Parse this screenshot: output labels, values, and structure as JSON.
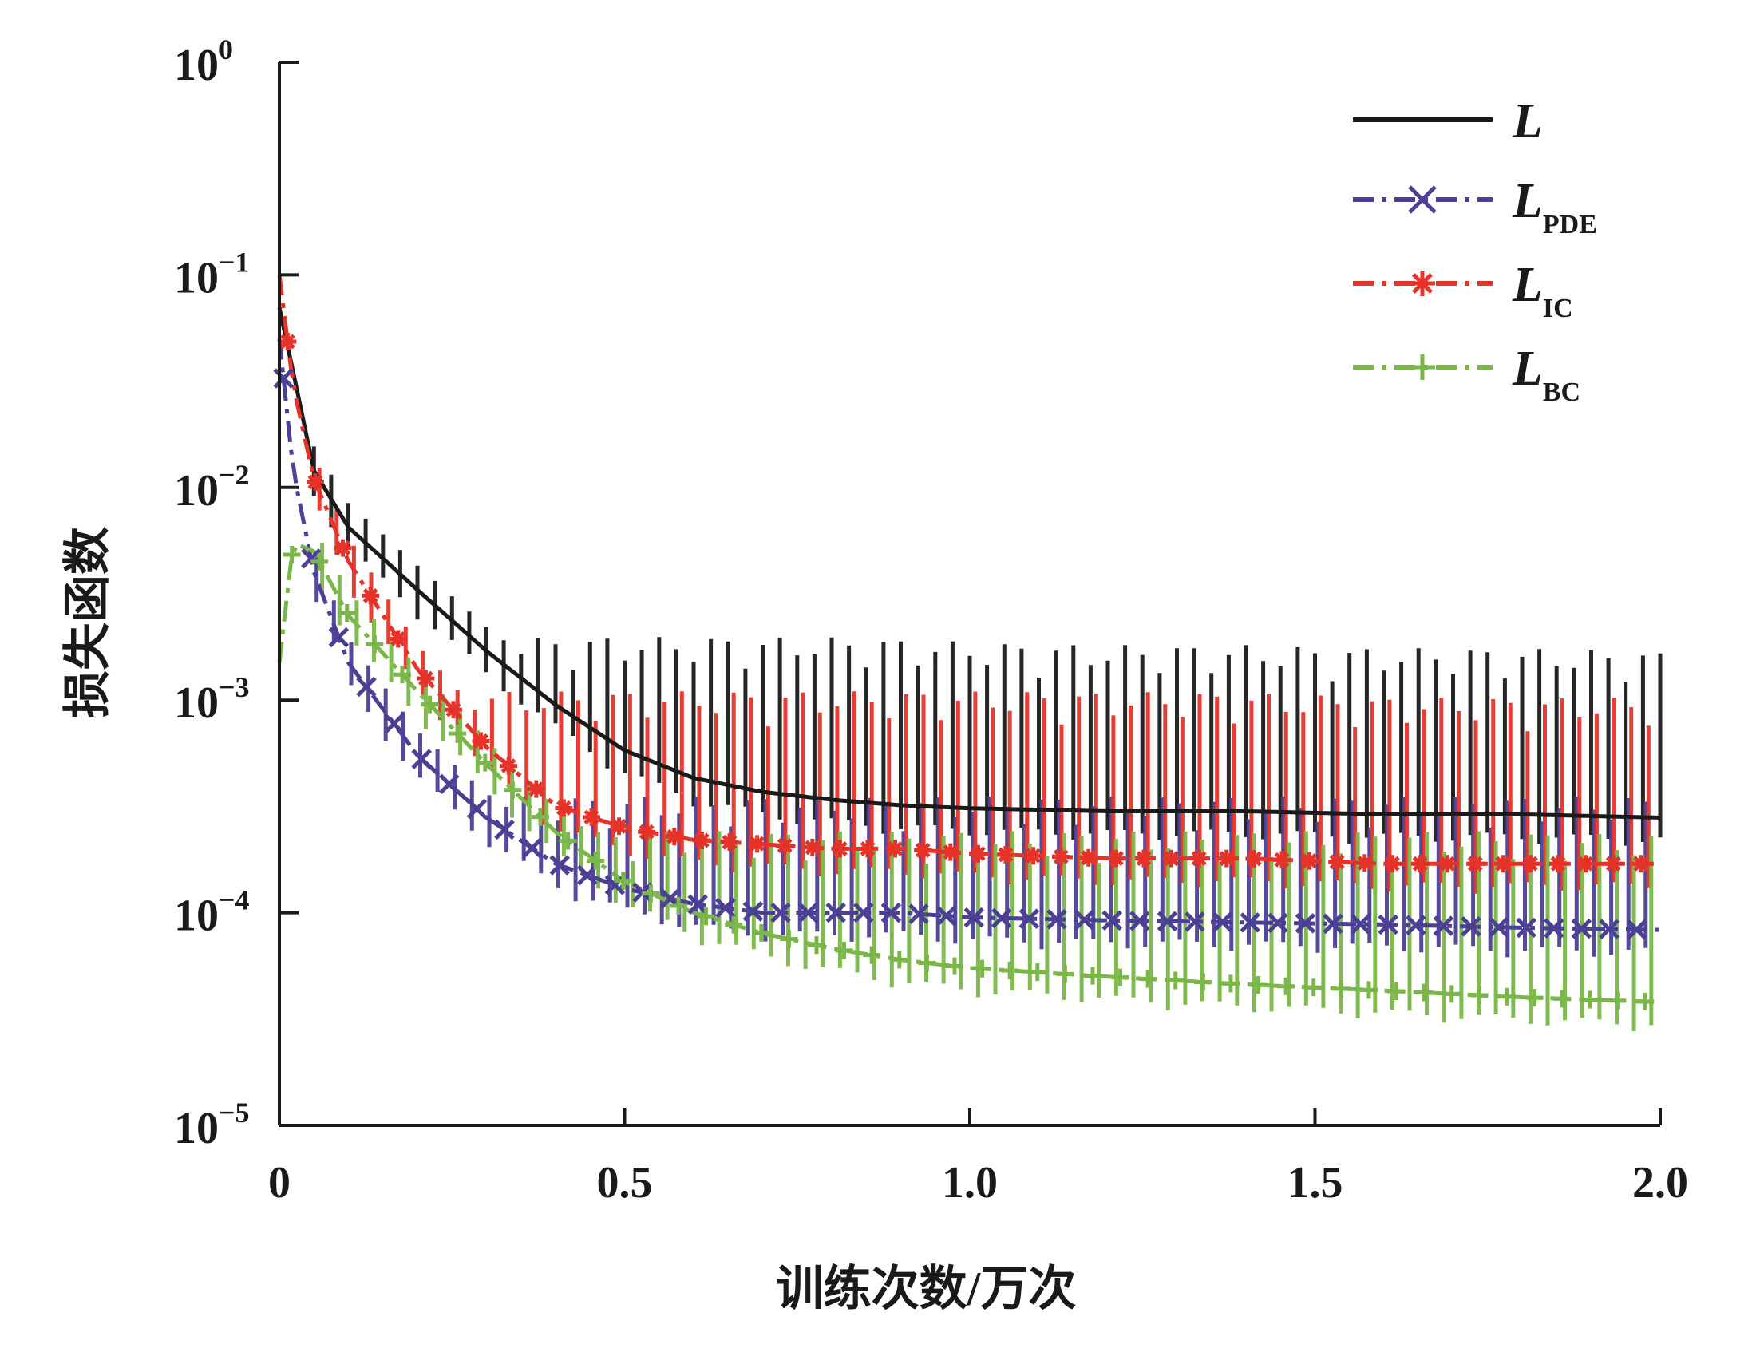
{
  "chart_data": {
    "type": "line",
    "title": "",
    "xlabel": "训练次数/万次",
    "ylabel": "损失函数",
    "xlim": [
      0,
      2.0
    ],
    "ylim": [
      1e-05,
      1
    ],
    "yscale": "log",
    "xticks": [
      "0",
      "0.5",
      "1.0",
      "1.5",
      "2.0"
    ],
    "yticks": [
      {
        "base": "10",
        "exp": "0"
      },
      {
        "base": "10",
        "exp": "−1"
      },
      {
        "base": "10",
        "exp": "−2"
      },
      {
        "base": "10",
        "exp": "−3"
      },
      {
        "base": "10",
        "exp": "−4"
      },
      {
        "base": "10",
        "exp": "−5"
      }
    ],
    "grid": false,
    "legend_position": "top-right",
    "x": [
      0,
      0.02,
      0.05,
      0.1,
      0.2,
      0.3,
      0.4,
      0.5,
      0.6,
      0.7,
      0.8,
      0.9,
      1.0,
      1.2,
      1.4,
      1.6,
      1.8,
      2.0
    ],
    "series": [
      {
        "name": "L",
        "subscript": "",
        "color": "#1a1a1a",
        "dash": "solid",
        "marker": "none",
        "values": [
          0.07,
          0.035,
          0.012,
          0.0065,
          0.0033,
          0.0017,
          0.00095,
          0.00058,
          0.00043,
          0.00037,
          0.00034,
          0.00032,
          0.00031,
          0.0003,
          0.0003,
          0.00029,
          0.00029,
          0.00028
        ],
        "spike_top": 0.0018
      },
      {
        "name": "L",
        "subscript": "PDE",
        "color": "#4b3f96",
        "dash": "dashdot",
        "marker": "x",
        "values": [
          0.05,
          0.012,
          0.004,
          0.0015,
          0.00055,
          0.00028,
          0.00017,
          0.00013,
          0.00011,
          0.0001,
          0.0001,
          0.0001,
          9.5e-05,
          9.2e-05,
          9e-05,
          8.8e-05,
          8.5e-05,
          8.3e-05
        ],
        "spike_top": 0.00032
      },
      {
        "name": "L",
        "subscript": "IC",
        "color": "#e5332a",
        "dash": "dashdot",
        "marker": "asterisk",
        "values": [
          0.1,
          0.03,
          0.011,
          0.0045,
          0.0014,
          0.0006,
          0.00032,
          0.00025,
          0.00022,
          0.00021,
          0.0002,
          0.0002,
          0.00019,
          0.00018,
          0.00018,
          0.00017,
          0.00017,
          0.00017
        ],
        "spike_top": 0.001
      },
      {
        "name": "L",
        "subscript": "BC",
        "color": "#7ab648",
        "dash": "dashdot",
        "marker": "plus",
        "values": [
          0.0015,
          0.0055,
          0.005,
          0.0025,
          0.0011,
          0.0005,
          0.00024,
          0.00014,
          0.0001,
          8e-05,
          6.8e-05,
          6e-05,
          5.5e-05,
          5e-05,
          4.6e-05,
          4.3e-05,
          4e-05,
          3.8e-05
        ],
        "spike_top": 0.00022
      }
    ]
  }
}
